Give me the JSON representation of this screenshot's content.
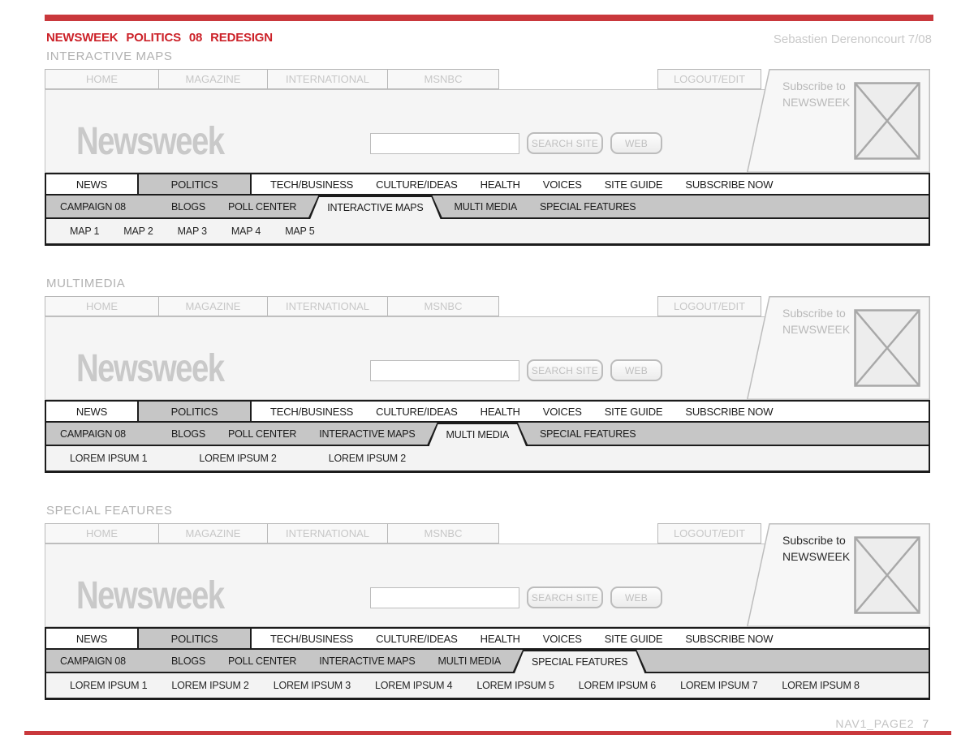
{
  "header": {
    "title": "NEWSWEEK POLITICS 08 REDESIGN",
    "author": "Sebastien Derenoncourt 7/08"
  },
  "footer": {
    "label": "NAV1_PAGE2",
    "page_number": "7"
  },
  "colors": {
    "accent_red_bar": "#c9383c",
    "title_red": "#cc2229",
    "nav_gray": "#c6c6c6",
    "light_gray_text": "#c7c7c7",
    "dark_border": "#1c1c1c"
  },
  "shared": {
    "top_tabs": [
      "HOME",
      "MAGAZINE",
      "INTERNATIONAL",
      "MSNBC"
    ],
    "logout_label": "LOGOUT/EDIT",
    "logo_text": "Newsweek",
    "search": {
      "input_value": "",
      "search_site_label": "SEARCH SITE",
      "web_label": "WEB"
    },
    "subscribe": {
      "line1": "Subscribe to",
      "line2": "NEWSWEEK",
      "image_icon": "crossed-box-image-placeholder"
    },
    "main_nav": [
      {
        "label": "NEWS",
        "emphasis": "box"
      },
      {
        "label": "POLITICS",
        "emphasis": "box-selected"
      },
      {
        "label": "TECH/BUSINESS",
        "emphasis": "text"
      },
      {
        "label": "CULTURE/IDEAS",
        "emphasis": "text"
      },
      {
        "label": "HEALTH",
        "emphasis": "text"
      },
      {
        "label": "VOICES",
        "emphasis": "text"
      },
      {
        "label": "SITE GUIDE",
        "emphasis": "text"
      },
      {
        "label": "SUBSCRIBE NOW",
        "emphasis": "text"
      }
    ],
    "secondary_nav": [
      "CAMPAIGN 08",
      "BLOGS",
      "POLL CENTER",
      "INTERACTIVE MAPS",
      "MULTI MEDIA",
      "SPECIAL FEATURES"
    ]
  },
  "sections": [
    {
      "label": "INTERACTIVE MAPS",
      "active_secondary": "INTERACTIVE MAPS",
      "subscribe_dark": false,
      "tertiary_items": [
        "MAP 1",
        "MAP 2",
        "MAP 3",
        "MAP 4",
        "MAP 5"
      ]
    },
    {
      "label": "MULTIMEDIA",
      "active_secondary": "MULTI MEDIA",
      "subscribe_dark": false,
      "tertiary_items": [
        "LOREM IPSUM 1",
        "LOREM IPSUM 2",
        "LOREM IPSUM 2"
      ]
    },
    {
      "label": "SPECIAL FEATURES",
      "active_secondary": "SPECIAL FEATURES",
      "subscribe_dark": true,
      "tertiary_items": [
        "LOREM IPSUM 1",
        "LOREM IPSUM 2",
        "LOREM IPSUM 3",
        "LOREM IPSUM 4",
        "LOREM IPSUM 5",
        "LOREM IPSUM 6",
        "LOREM IPSUM 7",
        "LOREM IPSUM 8"
      ]
    }
  ]
}
